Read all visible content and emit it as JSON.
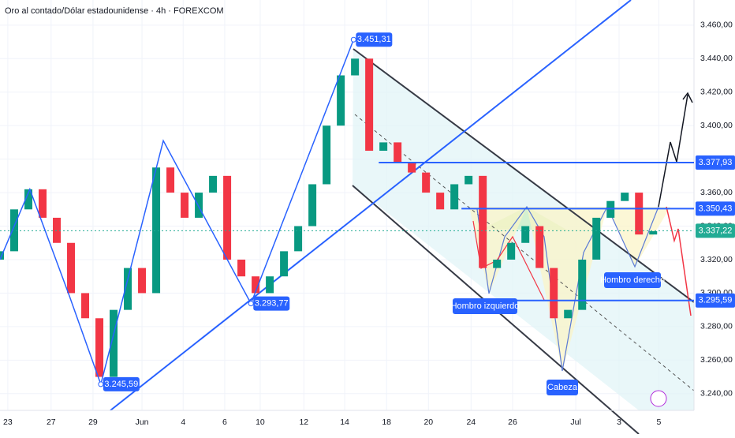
{
  "chart_data": {
    "type": "candlestick",
    "title": "Oro al contado/Dólar estadounidense · 4h · FOREXCOM",
    "xlim": [
      0,
      195.5
    ],
    "ylim": [
      3230,
      3475
    ],
    "xticks": [
      {
        "value": 2.2,
        "label": "23"
      },
      {
        "value": 14.4,
        "label": "27"
      },
      {
        "value": 26.2,
        "label": "29"
      },
      {
        "value": 40,
        "label": "Jun"
      },
      {
        "value": 51.6,
        "label": "4"
      },
      {
        "value": 63.3,
        "label": "6"
      },
      {
        "value": 73.3,
        "label": "10"
      },
      {
        "value": 85.6,
        "label": "12"
      },
      {
        "value": 97.1,
        "label": "14"
      },
      {
        "value": 108.9,
        "label": "18"
      },
      {
        "value": 120.7,
        "label": "20"
      },
      {
        "value": 132.7,
        "label": "24"
      },
      {
        "value": 144.4,
        "label": "26"
      },
      {
        "value": 162.2,
        "label": "Jul"
      },
      {
        "value": 174.4,
        "label": "3"
      },
      {
        "value": 185.6,
        "label": "5"
      }
    ],
    "yticks": [
      {
        "value": 3460,
        "label": "3.460,00"
      },
      {
        "value": 3440,
        "label": "3.440,00"
      },
      {
        "value": 3420,
        "label": "3.420,00"
      },
      {
        "value": 3400,
        "label": "3.400,00"
      },
      {
        "value": 3380,
        "label": "3.380,00"
      },
      {
        "value": 3360,
        "label": "3.360,00"
      },
      {
        "value": 3340,
        "label": "3.340,00"
      },
      {
        "value": 3320,
        "label": "3.320,00"
      },
      {
        "value": 3300,
        "label": "3.300,00"
      },
      {
        "value": 3280,
        "label": "3.280,00"
      },
      {
        "value": 3260,
        "label": "3.260,00"
      },
      {
        "value": 3240,
        "label": "3.240,00"
      }
    ],
    "x": [
      0,
      4,
      8,
      12,
      16,
      20,
      24,
      28,
      32,
      36,
      40,
      44,
      48,
      52,
      56,
      60,
      64,
      68,
      72,
      76,
      80,
      84,
      88,
      92,
      96,
      100,
      104,
      108,
      112,
      116,
      120,
      124,
      128,
      132,
      136,
      140,
      144,
      148,
      152,
      156,
      160,
      164,
      168,
      172,
      176,
      180,
      184
    ],
    "open": [
      3320,
      3325,
      3350,
      3362,
      3345,
      3330,
      3300,
      3285,
      3250,
      3290,
      3315,
      3300,
      3375,
      3360,
      3345,
      3360,
      3370,
      3320,
      3310,
      3300,
      3310,
      3325,
      3340,
      3365,
      3400,
      3430,
      3440,
      3385,
      3390,
      3378,
      3372,
      3360,
      3350,
      3365,
      3370,
      3315,
      3320,
      3330,
      3340,
      3315,
      3285,
      3290,
      3320,
      3345,
      3355,
      3360,
      3335
    ],
    "close": [
      3325,
      3350,
      3362,
      3345,
      3330,
      3300,
      3285,
      3250,
      3290,
      3315,
      3300,
      3375,
      3360,
      3345,
      3360,
      3370,
      3320,
      3310,
      3300,
      3310,
      3325,
      3340,
      3365,
      3400,
      3430,
      3440,
      3385,
      3390,
      3378,
      3372,
      3360,
      3350,
      3365,
      3370,
      3315,
      3320,
      3330,
      3340,
      3315,
      3285,
      3290,
      3320,
      3345,
      3355,
      3360,
      3335,
      3337
    ],
    "up_color": "#089981",
    "down_color": "#f23645",
    "zigzag": {
      "color": "#2962ff",
      "x": [
        0,
        8.4,
        19.6,
        28.4,
        46,
        70.7,
        99.6
      ],
      "values": [
        3320,
        3362,
        3298,
        3245.59,
        3391,
        3293.77,
        3451.31
      ],
      "value_labels": [
        null,
        null,
        null,
        "3.245,59",
        null,
        "3.293,77",
        "3.451,31"
      ]
    },
    "levels": [
      {
        "value": 3377.93,
        "label": "3.377,93",
        "color": "#2962ff",
        "from": 106.7
      },
      {
        "value": 3350.43,
        "label": "3.350,43",
        "color": "#2962ff",
        "from": 130
      },
      {
        "value": 3337.22,
        "label": "3.337,22",
        "color": "#22ab94",
        "from": 0
      },
      {
        "value": 3295.59,
        "label": "3.295,59",
        "color": "#2962ff",
        "from": 133.3
      }
    ],
    "annotations": [
      "Hombro izquierdo",
      "Cabeza",
      "Hombro derecho"
    ]
  }
}
